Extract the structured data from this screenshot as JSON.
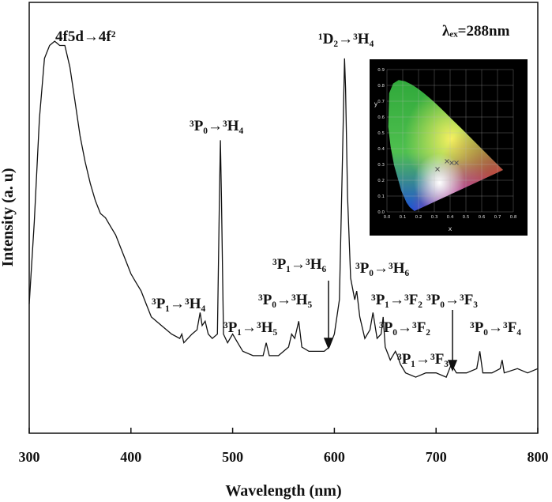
{
  "chart_data": [
    {
      "type": "line",
      "xlabel": "Wavelength (nm)",
      "ylabel": "Intensity (a. u)",
      "x": [
        300,
        305,
        310,
        315,
        320,
        325,
        330,
        335,
        340,
        345,
        350,
        355,
        360,
        365,
        370,
        375,
        380,
        385,
        390,
        395,
        400,
        405,
        410,
        415,
        420,
        430,
        440,
        448,
        450,
        452,
        460,
        465,
        468,
        470,
        473,
        476,
        480,
        485,
        487,
        488,
        489,
        491,
        495,
        500,
        505,
        510,
        520,
        530,
        533,
        536,
        545,
        555,
        558,
        561,
        565,
        568,
        575,
        585,
        590,
        595,
        600,
        605,
        608,
        610,
        611,
        613,
        616,
        620,
        622,
        625,
        630,
        635,
        638,
        642,
        646,
        648,
        650,
        655,
        660,
        662,
        665,
        670,
        680,
        690,
        700,
        710,
        715,
        720,
        730,
        740,
        743,
        746,
        755,
        763,
        765,
        767,
        780,
        790,
        800
      ],
      "values": [
        30,
        49,
        73,
        87,
        90,
        91,
        90,
        90,
        85,
        77,
        69,
        63,
        58,
        54,
        51,
        50,
        48,
        46,
        43,
        40,
        37,
        35,
        33,
        30,
        27,
        25,
        23,
        22,
        23,
        21,
        23,
        24,
        28,
        25,
        26,
        23,
        22,
        23,
        55,
        68,
        55,
        23,
        21,
        23,
        21,
        19,
        18,
        18,
        21,
        18,
        18,
        20,
        23,
        22,
        26,
        20,
        19,
        19,
        19,
        20,
        23,
        31,
        64,
        87,
        80,
        55,
        36,
        31,
        33,
        27,
        22,
        24,
        28,
        22,
        23,
        27,
        20,
        17,
        19,
        18,
        16,
        14,
        13,
        14,
        14,
        13,
        16,
        14,
        14,
        15,
        19,
        14,
        14,
        15,
        17,
        14,
        15,
        14,
        15
      ],
      "color": "#111111",
      "xlim": [
        300,
        800
      ],
      "xticks": [
        300,
        400,
        500,
        600,
        700,
        800
      ],
      "ylim": [
        0,
        100
      ],
      "annotations": [
        "4f5d→4f²",
        "¹D₂→³H₄",
        "λₑₓ=288nm",
        "³P₀→³H₄",
        "³P₁→³H₄",
        "³P₁→³H₆",
        "³P₀→³H₆",
        "³P₀→³H₅",
        "³P₁→³F₂",
        "³P₀→³F₃",
        "³P₁→³H₅",
        "³P₀→³F₂",
        "³P₀→³F₄",
        "³P₁→³F₃"
      ]
    },
    {
      "type": "scatter",
      "xlabel": "x",
      "ylabel": "y",
      "x": [
        0.32,
        0.38,
        0.41,
        0.44
      ],
      "values": [
        0.27,
        0.32,
        0.31,
        0.31
      ],
      "color": "#555555",
      "xlim": [
        0,
        0.8
      ],
      "ylim": [
        0,
        0.9
      ],
      "xticks": [
        {
          "value": 0,
          "label": "0.0"
        },
        0.1,
        0.2,
        0.3,
        0.4,
        0.5,
        0.6,
        0.7,
        0.8
      ],
      "yticks": [
        {
          "value": 0,
          "label": "0.0"
        },
        0.1,
        0.2,
        0.3,
        0.4,
        0.5,
        0.6,
        0.7,
        0.8,
        0.9
      ],
      "grid": true
    }
  ]
}
